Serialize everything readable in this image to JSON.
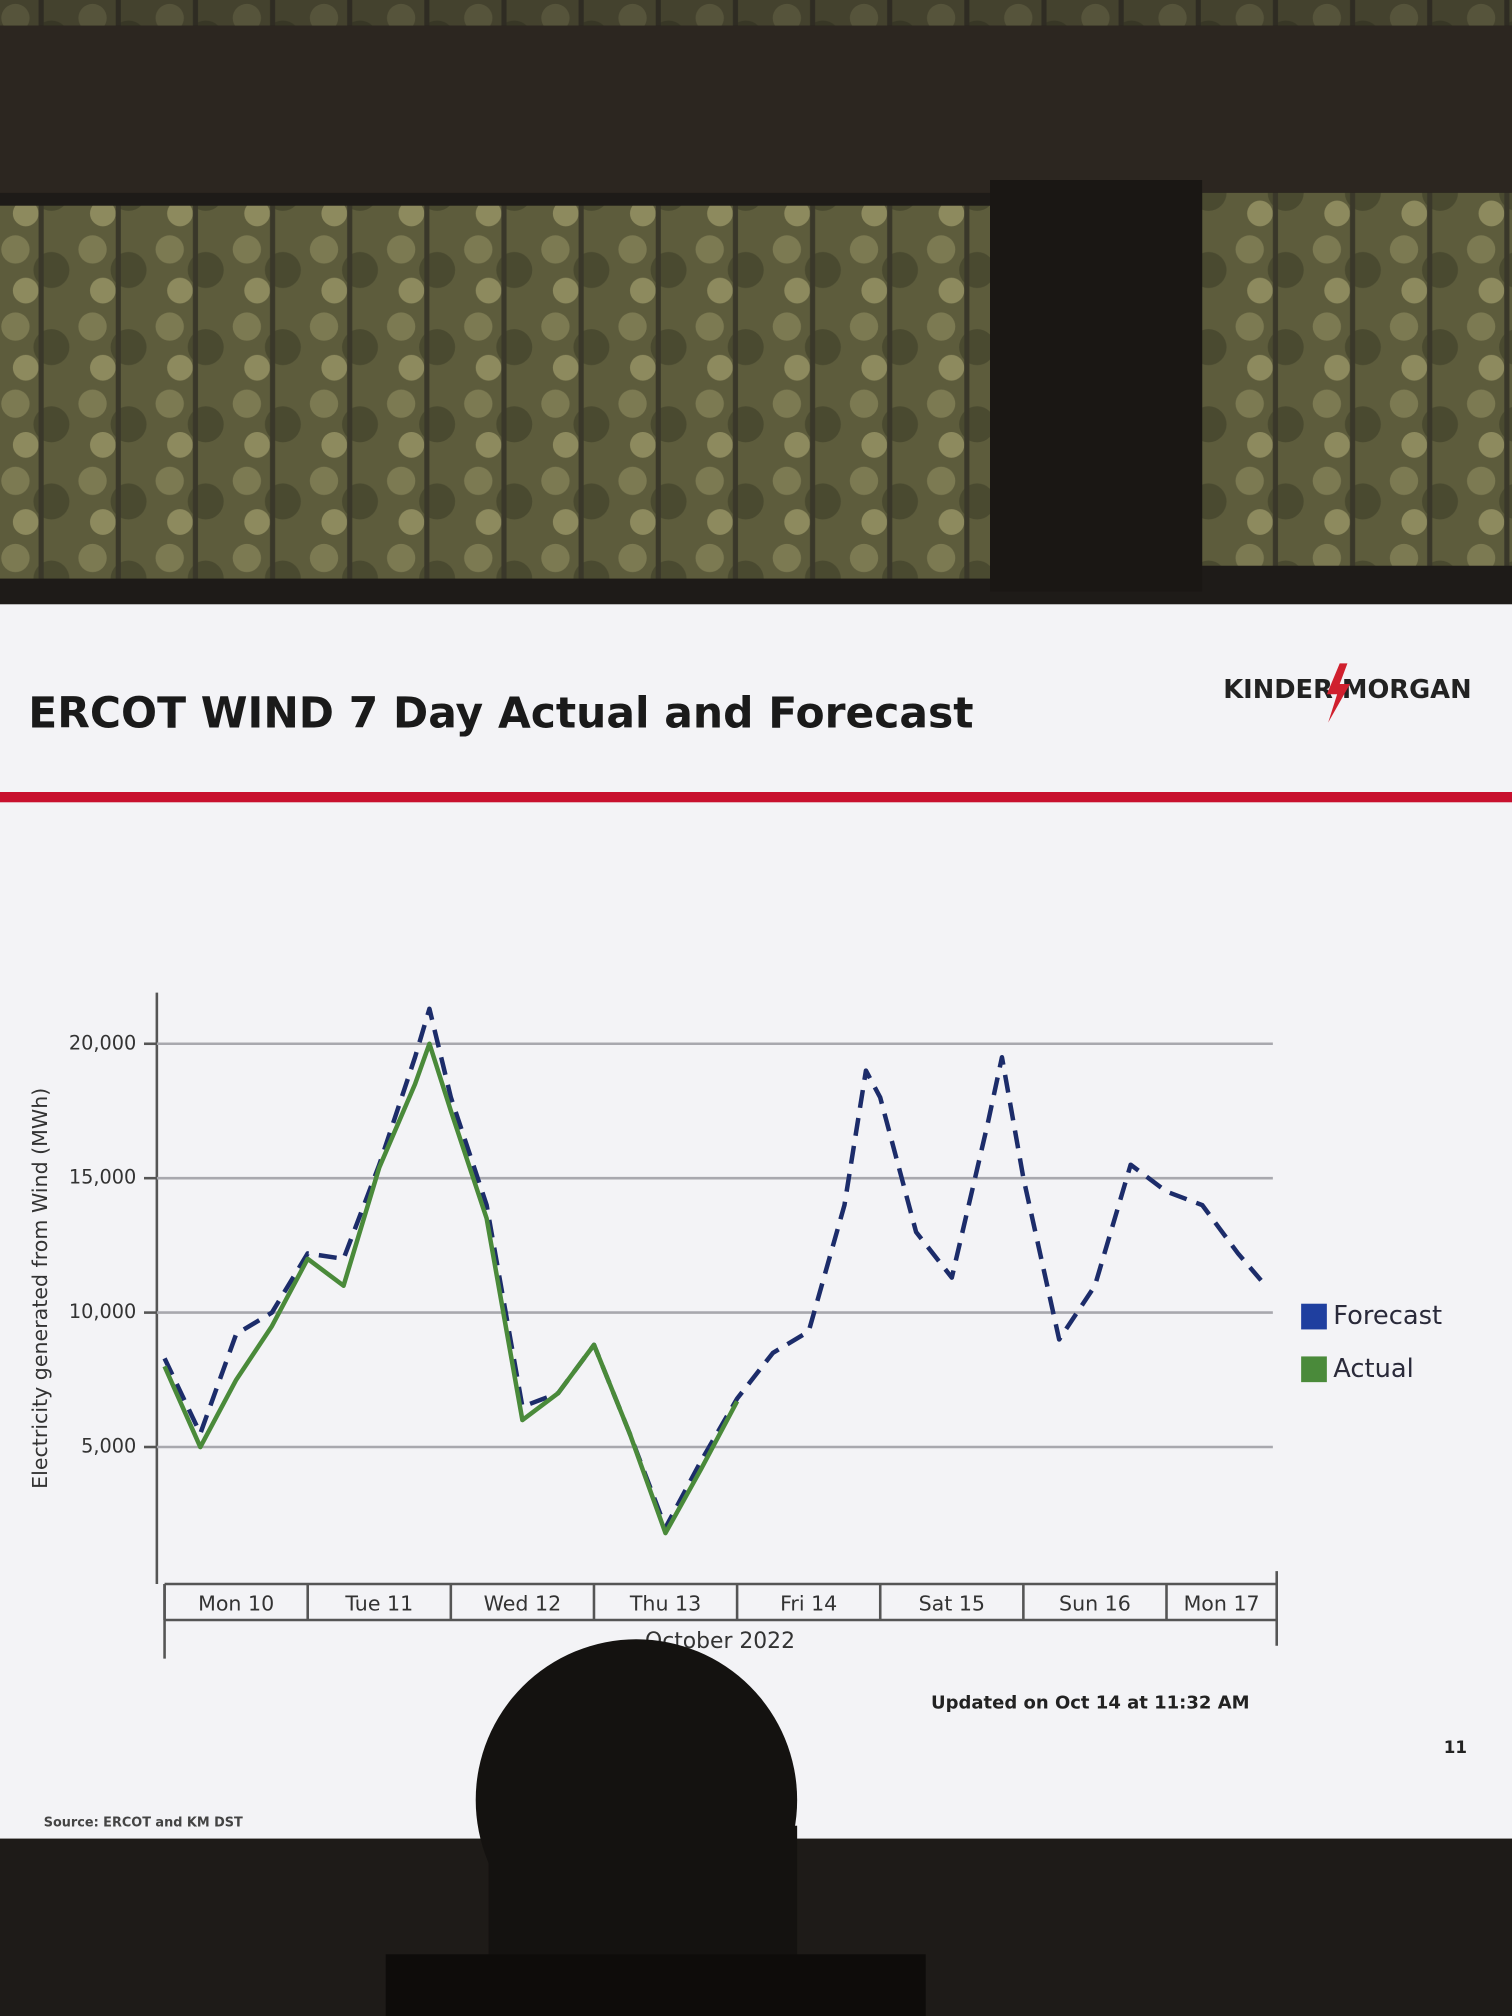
{
  "chart_data": {
    "type": "line",
    "title": "ERCOT WIND 7 Day Actual and Forecast",
    "logo": "KINDER MORGAN",
    "ylabel": "Electricity generated from Wind (MWh)",
    "xlabel": "October 2022",
    "annotations": [
      "Updated on Oct 14 at 11:32 AM"
    ],
    "page_number": "11",
    "source": "Source: ERCOT and KM DST",
    "x": [
      0,
      0.25,
      0.5,
      0.75,
      1,
      1.25,
      1.5,
      1.75,
      1.85,
      2,
      2.25,
      2.5,
      2.75,
      3,
      3.25,
      3.5,
      3.75,
      4,
      4.25,
      4.5,
      4.75,
      4.9,
      5,
      5.25,
      5.5,
      5.75,
      5.85,
      6,
      6.25,
      6.5,
      6.75,
      7,
      7.25,
      7.5,
      7.66
    ],
    "series": [
      {
        "name": "Forecast",
        "color": "#1c2c6a",
        "dashed": true,
        "values": [
          8300,
          5500,
          9200,
          10000,
          12200,
          12000,
          15500,
          19500,
          21300,
          18000,
          14000,
          6500,
          7000,
          8800,
          5500,
          2000,
          4500,
          6800,
          8500,
          9300,
          14000,
          19000,
          18000,
          13000,
          11300,
          17000,
          19500,
          15000,
          9000,
          11000,
          15500,
          14500,
          14000,
          12200,
          11200
        ]
      },
      {
        "name": "Actual",
        "color": "#4a8a3a",
        "dashed": false,
        "values": [
          8000,
          5000,
          7500,
          9500,
          12000,
          11000,
          15400,
          18500,
          20000,
          17500,
          13500,
          6000,
          7000,
          8800,
          5500,
          1800,
          4200,
          6700,
          null,
          null,
          null,
          null,
          null,
          null,
          null,
          null,
          null,
          null,
          null,
          null,
          null,
          null,
          null,
          null,
          null
        ]
      }
    ],
    "xlim": [
      0,
      7.77
    ],
    "xticks": [
      {
        "value": 0,
        "label": "Mon 10"
      },
      {
        "value": 1,
        "label": "Tue 11"
      },
      {
        "value": 2,
        "label": "Wed 12"
      },
      {
        "value": 3,
        "label": "Thu 13"
      },
      {
        "value": 4,
        "label": "Fri 14"
      },
      {
        "value": 5,
        "label": "Sat 15"
      },
      {
        "value": 6,
        "label": "Sun 16"
      },
      {
        "value": 7,
        "label": "Mon 17"
      }
    ],
    "ylim": [
      0,
      22000
    ],
    "yticks": [
      {
        "value": 5000,
        "label": "5,000"
      },
      {
        "value": 10000,
        "label": "10,000"
      },
      {
        "value": 15000,
        "label": "15,000"
      },
      {
        "value": 20000,
        "label": "20,000"
      }
    ],
    "grid": true,
    "legend": "right"
  }
}
